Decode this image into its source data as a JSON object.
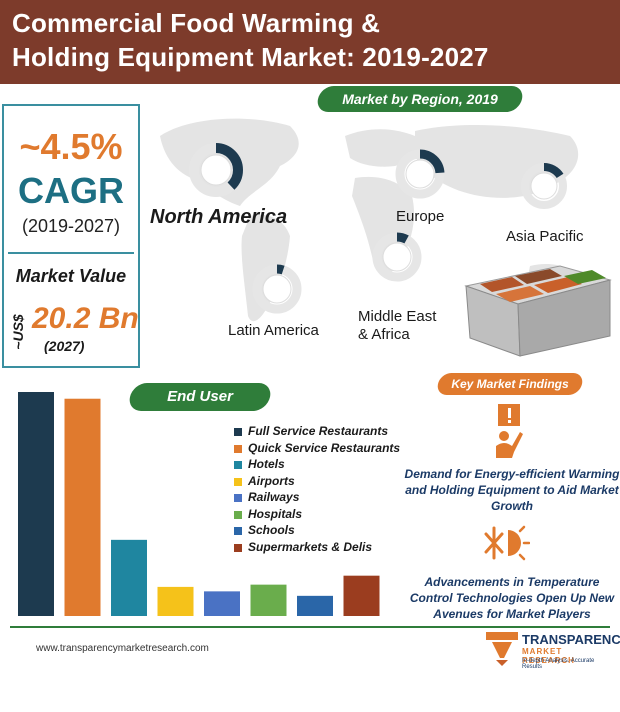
{
  "header": {
    "title_line1": "Commercial Food Warming &",
    "title_line2": "Holding Equipment Market: 2019-2027",
    "colors": {
      "background": "#7d3b2b",
      "text": "#ffffff"
    }
  },
  "cagr": {
    "value": "~4.5%",
    "label": "CAGR",
    "period": "(2019-2027)"
  },
  "market_value": {
    "label": "Market Value",
    "currency": "~US$",
    "value": "20.2 Bn",
    "year": "(2027)"
  },
  "region_section": {
    "title": "Market by Region, 2019",
    "regions": [
      {
        "name": "North America",
        "share": 0.38
      },
      {
        "name": "Europe",
        "share": 0.24
      },
      {
        "name": "Asia Pacific",
        "share": 0.16
      },
      {
        "name": "Latin America",
        "share": 0.05
      },
      {
        "name": "Middle East\n& Africa",
        "share": 0.08
      }
    ]
  },
  "end_user_section": {
    "title": "End User",
    "legend": [
      {
        "label": "Full Service Restaurants",
        "color": "#1d3a4f"
      },
      {
        "label": "Quick Service Restaurants",
        "color": "#e07a2e"
      },
      {
        "label": "Hotels",
        "color": "#1f86a0"
      },
      {
        "label": "Airports",
        "color": "#f5c21a"
      },
      {
        "label": "Railways",
        "color": "#4a72c4"
      },
      {
        "label": "Hospitals",
        "color": "#6aad4c"
      },
      {
        "label": "Schools",
        "color": "#2a66a8"
      },
      {
        "label": "Supermarkets & Delis",
        "color": "#9b3d1f"
      }
    ]
  },
  "chart_data": {
    "type": "bar",
    "categories": [
      "Full Service Restaurants",
      "Quick Service Restaurants",
      "Hotels",
      "Airports",
      "Railways",
      "Hospitals",
      "Schools",
      "Supermarkets & Delis"
    ],
    "values": [
      100,
      97,
      34,
      13,
      11,
      14,
      9,
      18
    ],
    "colors": [
      "#1d3a4f",
      "#e07a2e",
      "#1f86a0",
      "#f5c21a",
      "#4a72c4",
      "#6aad4c",
      "#2a66a8",
      "#9b3d1f"
    ],
    "ylim": [
      0,
      100
    ],
    "grid": false
  },
  "findings_section": {
    "title": "Key Market Findings",
    "findings": [
      {
        "text": "Demand for Energy-efficient Warming and Holding Equipment to Aid Market Growth",
        "icon": "demand-sign-icon"
      },
      {
        "text": "Advancements in Temperature Control Technologies Open Up New Avenues for Market Players",
        "icon": "temperature-control-icon"
      }
    ]
  },
  "footer": {
    "url": "www.transparencymarketresearch.com",
    "logo_name": "TRANSPARENCY",
    "logo_sub": "MARKET RESEARCH",
    "logo_tag": "In-depth Analysis. Accurate Results"
  },
  "colors": {
    "accent_green": "#2f7d3a",
    "accent_orange": "#e07a2e",
    "teal": "#1d6f83",
    "donut_track": "#e6e6e6",
    "donut_fill": "#1d3a4f"
  }
}
